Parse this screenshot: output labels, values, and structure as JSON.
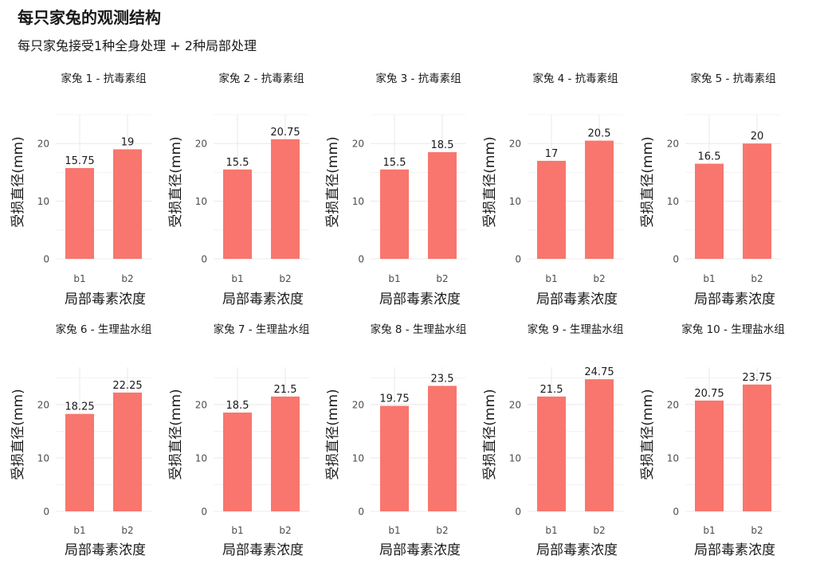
{
  "title": "每只家兔的观测结构",
  "subtitle": "每只家兔接受1种全身处理 + 2种局部处理",
  "colors": {
    "bar": "#F8766D",
    "grid": "#EBEBEB",
    "axis_text": "#4D4D4D",
    "text": "#1A1A1A"
  },
  "chart_data": [
    {
      "type": "bar",
      "title": "家兔 1 - 抗毒素组",
      "categories": [
        "b1",
        "b2"
      ],
      "values": [
        15.75,
        19
      ],
      "data_labels": [
        "15.75",
        "19"
      ],
      "xlabel": "局部毒素浓度",
      "ylabel": "受损直径(mm)",
      "ylim": [
        0,
        25
      ],
      "yticks": [
        0,
        10,
        20
      ]
    },
    {
      "type": "bar",
      "title": "家兔 2 - 抗毒素组",
      "categories": [
        "b1",
        "b2"
      ],
      "values": [
        15.5,
        20.75
      ],
      "data_labels": [
        "15.5",
        "20.75"
      ],
      "xlabel": "局部毒素浓度",
      "ylabel": "受损直径(mm)",
      "ylim": [
        0,
        25
      ],
      "yticks": [
        0,
        10,
        20
      ]
    },
    {
      "type": "bar",
      "title": "家兔 3 - 抗毒素组",
      "categories": [
        "b1",
        "b2"
      ],
      "values": [
        15.5,
        18.5
      ],
      "data_labels": [
        "15.5",
        "18.5"
      ],
      "xlabel": "局部毒素浓度",
      "ylabel": "受损直径(mm)",
      "ylim": [
        0,
        25
      ],
      "yticks": [
        0,
        10,
        20
      ]
    },
    {
      "type": "bar",
      "title": "家兔 4 - 抗毒素组",
      "categories": [
        "b1",
        "b2"
      ],
      "values": [
        17,
        20.5
      ],
      "data_labels": [
        "17",
        "20.5"
      ],
      "xlabel": "局部毒素浓度",
      "ylabel": "受损直径(mm)",
      "ylim": [
        0,
        25
      ],
      "yticks": [
        0,
        10,
        20
      ]
    },
    {
      "type": "bar",
      "title": "家兔 5 - 抗毒素组",
      "categories": [
        "b1",
        "b2"
      ],
      "values": [
        16.5,
        20
      ],
      "data_labels": [
        "16.5",
        "20"
      ],
      "xlabel": "局部毒素浓度",
      "ylabel": "受损直径(mm)",
      "ylim": [
        0,
        25
      ],
      "yticks": [
        0,
        10,
        20
      ]
    },
    {
      "type": "bar",
      "title": "家兔 6 - 生理盐水组",
      "categories": [
        "b1",
        "b2"
      ],
      "values": [
        18.25,
        22.25
      ],
      "data_labels": [
        "18.25",
        "22.25"
      ],
      "xlabel": "局部毒素浓度",
      "ylabel": "受损直径(mm)",
      "ylim": [
        0,
        27
      ],
      "yticks": [
        0,
        10,
        20
      ]
    },
    {
      "type": "bar",
      "title": "家兔 7 - 生理盐水组",
      "categories": [
        "b1",
        "b2"
      ],
      "values": [
        18.5,
        21.5
      ],
      "data_labels": [
        "18.5",
        "21.5"
      ],
      "xlabel": "局部毒素浓度",
      "ylabel": "受损直径(mm)",
      "ylim": [
        0,
        27
      ],
      "yticks": [
        0,
        10,
        20
      ]
    },
    {
      "type": "bar",
      "title": "家兔 8 - 生理盐水组",
      "categories": [
        "b1",
        "b2"
      ],
      "values": [
        19.75,
        23.5
      ],
      "data_labels": [
        "19.75",
        "23.5"
      ],
      "xlabel": "局部毒素浓度",
      "ylabel": "受损直径(mm)",
      "ylim": [
        0,
        27
      ],
      "yticks": [
        0,
        10,
        20
      ]
    },
    {
      "type": "bar",
      "title": "家兔 9 - 生理盐水组",
      "categories": [
        "b1",
        "b2"
      ],
      "values": [
        21.5,
        24.75
      ],
      "data_labels": [
        "21.5",
        "24.75"
      ],
      "xlabel": "局部毒素浓度",
      "ylabel": "受损直径(mm)",
      "ylim": [
        0,
        27
      ],
      "yticks": [
        0,
        10,
        20
      ]
    },
    {
      "type": "bar",
      "title": "家兔 10 - 生理盐水组",
      "categories": [
        "b1",
        "b2"
      ],
      "values": [
        20.75,
        23.75
      ],
      "data_labels": [
        "20.75",
        "23.75"
      ],
      "xlabel": "局部毒素浓度",
      "ylabel": "受损直径(mm)",
      "ylim": [
        0,
        27
      ],
      "yticks": [
        0,
        10,
        20
      ]
    }
  ]
}
